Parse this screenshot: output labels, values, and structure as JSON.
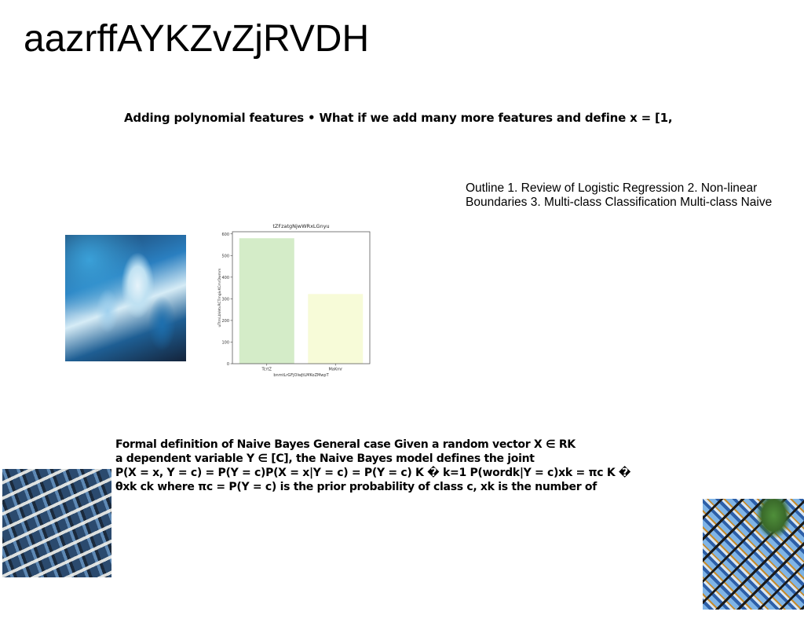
{
  "slide": {
    "title": "aazrffAYKZvZjRVDH",
    "heading": "Adding polynomial features • What if we add many more features and define x = [1,",
    "outline_lines": [
      "Outline 1. Review of Logistic Regression 2. Non-linear",
      "Boundaries 3. Multi-class Classification Multi-class Naive"
    ],
    "formal_lines": [
      "Formal definition of Naive Bayes General case Given a random vector X ∈ RK",
      "a dependent variable Y ∈ [C], the Naive Bayes model defines the joint",
      "P(X = x, Y = c) = P(Y = c)P(X = x|Y = c) = P(Y = c) K � k=1 P(wordk|Y = c)xk = πc K �",
      "θxk ck where πc = P(Y = c) is the prior probability of class c, xk is the number of"
    ]
  },
  "images": {
    "fluid": "blue fluid art photo",
    "building": "building facade photo",
    "glass": "stained glass photo"
  },
  "chart_data": {
    "type": "bar",
    "title": "tZFzatgNjwWRxLGnyu",
    "xlabel": "bnmtLrGFjOlwJtLMKoZMwpT",
    "ylabel": "uTtmLbVetvRCTmgivKCmrDwmm",
    "categories": [
      "TcrtZ",
      "MaKmr"
    ],
    "values": [
      580,
      322
    ],
    "colors": [
      "#d4ecc8",
      "#f7fbd8"
    ],
    "ylim": [
      0,
      610
    ],
    "yticks": [
      0,
      100,
      200,
      300,
      400,
      500,
      600
    ],
    "grid": false
  }
}
